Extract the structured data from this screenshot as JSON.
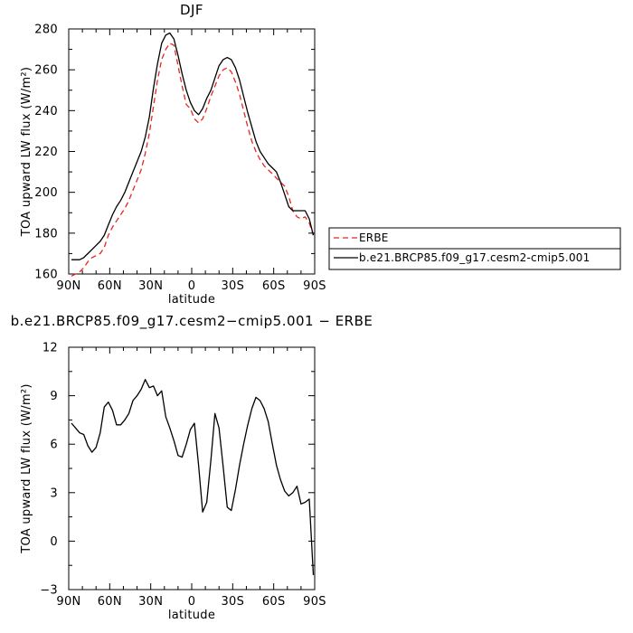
{
  "chart_data": [
    {
      "type": "line",
      "title": "DJF",
      "xlabel": "latitude",
      "ylabel": "TOA upward LW flux (W/m²)",
      "xlim": [
        90,
        -90
      ],
      "ylim": [
        160,
        280
      ],
      "x_ticks": [
        {
          "value": 90,
          "label": "90N"
        },
        {
          "value": 60,
          "label": "60N"
        },
        {
          "value": 30,
          "label": "30N"
        },
        {
          "value": 0,
          "label": "0"
        },
        {
          "value": -30,
          "label": "30S"
        },
        {
          "value": -60,
          "label": "60S"
        },
        {
          "value": -90,
          "label": "90S"
        }
      ],
      "y_ticks": [
        160,
        180,
        200,
        220,
        240,
        260,
        280
      ],
      "legend_position": "right",
      "series": [
        {
          "name": "ERBE",
          "color": "#e8261e",
          "dashed": true,
          "x": [
            88,
            85,
            82,
            79,
            76,
            73,
            70,
            67,
            64,
            61,
            58,
            55,
            52,
            49,
            46,
            43,
            40,
            37,
            34,
            31,
            28,
            25,
            22,
            19,
            16,
            13,
            10,
            7,
            4,
            1,
            -2,
            -5,
            -8,
            -11,
            -14,
            -17,
            -20,
            -23,
            -26,
            -29,
            -32,
            -35,
            -38,
            -41,
            -44,
            -47,
            -50,
            -53,
            -56,
            -59,
            -62,
            -65,
            -68,
            -71,
            -74,
            -77,
            -80,
            -83,
            -86,
            -89
          ],
          "values": [
            159,
            160,
            161,
            163,
            166,
            168,
            169,
            170,
            173,
            179,
            183,
            186,
            189,
            192,
            196,
            201,
            206,
            211,
            219,
            229,
            242,
            255,
            265,
            270,
            273,
            272,
            262,
            252,
            243,
            241,
            236,
            234,
            236,
            241,
            247,
            252,
            257,
            260,
            261,
            259,
            254,
            248,
            240,
            232,
            225,
            220,
            216,
            213,
            211,
            209,
            207,
            205,
            203,
            198,
            191,
            188,
            187,
            188,
            185,
            179
          ]
        },
        {
          "name": "b.e21.BRCP85.f09_g17.cesm2-cmip5.001",
          "color": "#000000",
          "dashed": false,
          "x": [
            88,
            85,
            82,
            79,
            76,
            73,
            70,
            67,
            64,
            61,
            58,
            55,
            52,
            49,
            46,
            43,
            40,
            37,
            34,
            31,
            28,
            25,
            22,
            19,
            16,
            13,
            10,
            7,
            4,
            1,
            -2,
            -5,
            -8,
            -11,
            -14,
            -17,
            -20,
            -23,
            -26,
            -29,
            -32,
            -35,
            -38,
            -41,
            -44,
            -47,
            -50,
            -53,
            -56,
            -59,
            -62,
            -65,
            -68,
            -71,
            -74,
            -77,
            -80,
            -83,
            -86,
            -89
          ],
          "values": [
            167,
            167,
            167,
            168,
            170,
            172,
            174,
            176,
            179,
            184,
            189,
            193,
            196,
            200,
            205,
            210,
            215,
            220,
            227,
            237,
            251,
            263,
            273,
            277,
            278,
            275,
            267,
            258,
            250,
            244,
            240,
            238,
            241,
            246,
            250,
            256,
            262,
            265,
            266,
            265,
            261,
            255,
            247,
            239,
            232,
            225,
            220,
            217,
            214,
            212,
            210,
            205,
            199,
            193,
            191,
            191,
            191,
            191,
            187,
            179
          ]
        }
      ]
    },
    {
      "type": "line",
      "title": "b.e21.BRCP85.f09_g17.cesm2−cmip5.001  −  ERBE",
      "xlabel": "latitude",
      "ylabel": "TOA upward LW flux (W/m²)",
      "xlim": [
        90,
        -90
      ],
      "ylim": [
        -3,
        12
      ],
      "x_ticks": [
        {
          "value": 90,
          "label": "90N"
        },
        {
          "value": 60,
          "label": "60N"
        },
        {
          "value": 30,
          "label": "30N"
        },
        {
          "value": 0,
          "label": "0"
        },
        {
          "value": -30,
          "label": "30S"
        },
        {
          "value": -60,
          "label": "60S"
        },
        {
          "value": -90,
          "label": "90S"
        }
      ],
      "y_ticks": [
        -3,
        0,
        3,
        6,
        9,
        12
      ],
      "series": [
        {
          "color": "#000000",
          "dashed": false,
          "x": [
            88,
            85,
            82,
            79,
            76,
            73,
            70,
            67,
            64,
            61,
            58,
            55,
            52,
            49,
            46,
            43,
            40,
            37,
            34,
            31,
            28,
            25,
            22,
            19,
            16,
            13,
            10,
            7,
            4,
            1,
            -2,
            -5,
            -8,
            -11,
            -14,
            -17,
            -20,
            -23,
            -26,
            -29,
            -32,
            -35,
            -38,
            -41,
            -44,
            -47,
            -50,
            -53,
            -56,
            -59,
            -62,
            -65,
            -68,
            -71,
            -74,
            -77,
            -80,
            -83,
            -86,
            -89
          ],
          "values": [
            7.3,
            7.0,
            6.7,
            6.6,
            5.9,
            5.5,
            5.8,
            6.7,
            8.3,
            8.6,
            8.1,
            7.2,
            7.2,
            7.5,
            7.9,
            8.7,
            9.0,
            9.4,
            10.0,
            9.5,
            9.6,
            9.0,
            9.3,
            7.7,
            7.0,
            6.2,
            5.3,
            5.2,
            6.0,
            6.9,
            7.3,
            4.7,
            1.8,
            2.4,
            5.0,
            7.9,
            7.0,
            4.6,
            2.1,
            1.9,
            3.2,
            4.7,
            6.0,
            7.2,
            8.2,
            8.9,
            8.7,
            8.2,
            7.4,
            6.0,
            4.7,
            3.8,
            3.1,
            2.8,
            3.0,
            3.4,
            2.3,
            2.4,
            2.6,
            -2.1
          ]
        }
      ]
    }
  ]
}
